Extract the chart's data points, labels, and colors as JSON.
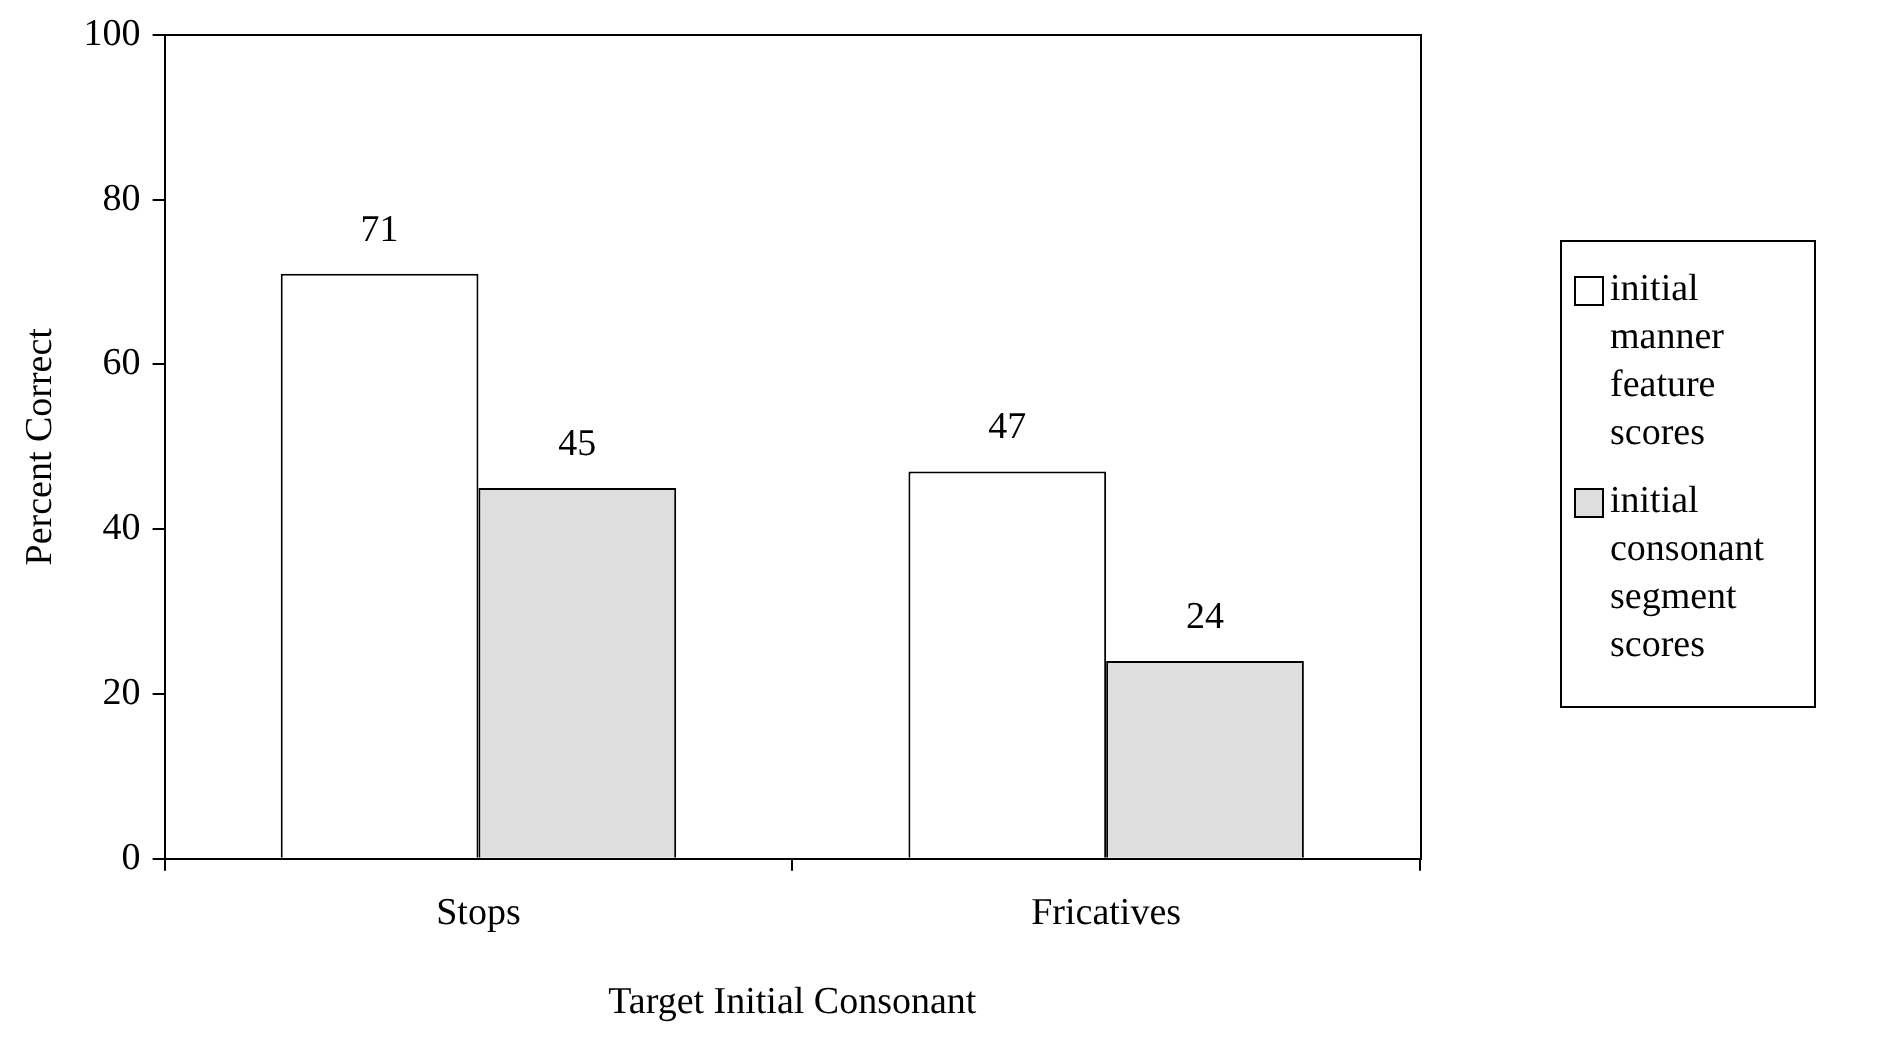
{
  "chart_data": {
    "type": "bar",
    "xlabel": "Target Initial Consonant",
    "ylabel": "Percent Correct",
    "categories": [
      "Stops",
      "Fricatives"
    ],
    "series": [
      {
        "name": "initial manner feature scores",
        "color": "#ffffff",
        "values": [
          71,
          47
        ]
      },
      {
        "name": "initial consonant segment scores",
        "color": "#dedede",
        "values": [
          45,
          24
        ]
      }
    ],
    "ylim": [
      0,
      100
    ],
    "yticks": [
      0,
      20,
      40,
      60,
      80,
      100
    ],
    "grid": false,
    "legend": "right",
    "data_labels": true
  }
}
